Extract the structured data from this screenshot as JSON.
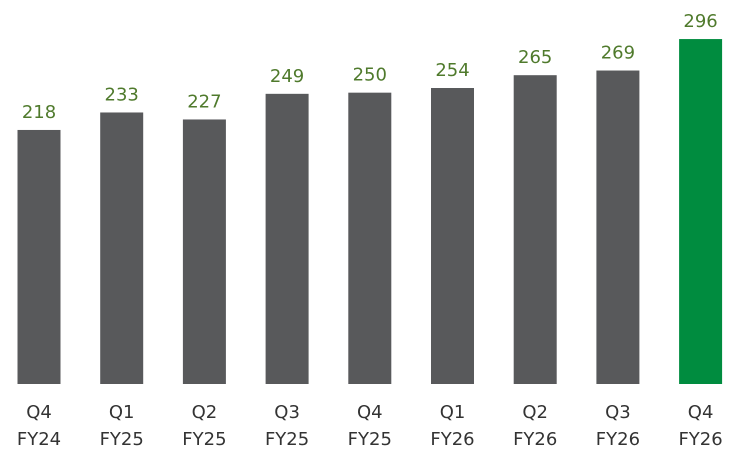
{
  "chart_data": {
    "type": "bar",
    "categories": [
      [
        "Q4",
        "FY24"
      ],
      [
        "Q1",
        "FY25"
      ],
      [
        "Q2",
        "FY25"
      ],
      [
        "Q3",
        "FY25"
      ],
      [
        "Q4",
        "FY25"
      ],
      [
        "Q1",
        "FY26"
      ],
      [
        "Q2",
        "FY26"
      ],
      [
        "Q3",
        "FY26"
      ],
      [
        "Q4",
        "FY26"
      ]
    ],
    "values": [
      218,
      233,
      227,
      249,
      250,
      254,
      265,
      269,
      296
    ],
    "colors": [
      "#58595b",
      "#58595b",
      "#58595b",
      "#58595b",
      "#58595b",
      "#58595b",
      "#58595b",
      "#58595b",
      "#008c3f"
    ],
    "label_color": "#4f7a2c",
    "ylim": [
      0,
      300
    ]
  }
}
